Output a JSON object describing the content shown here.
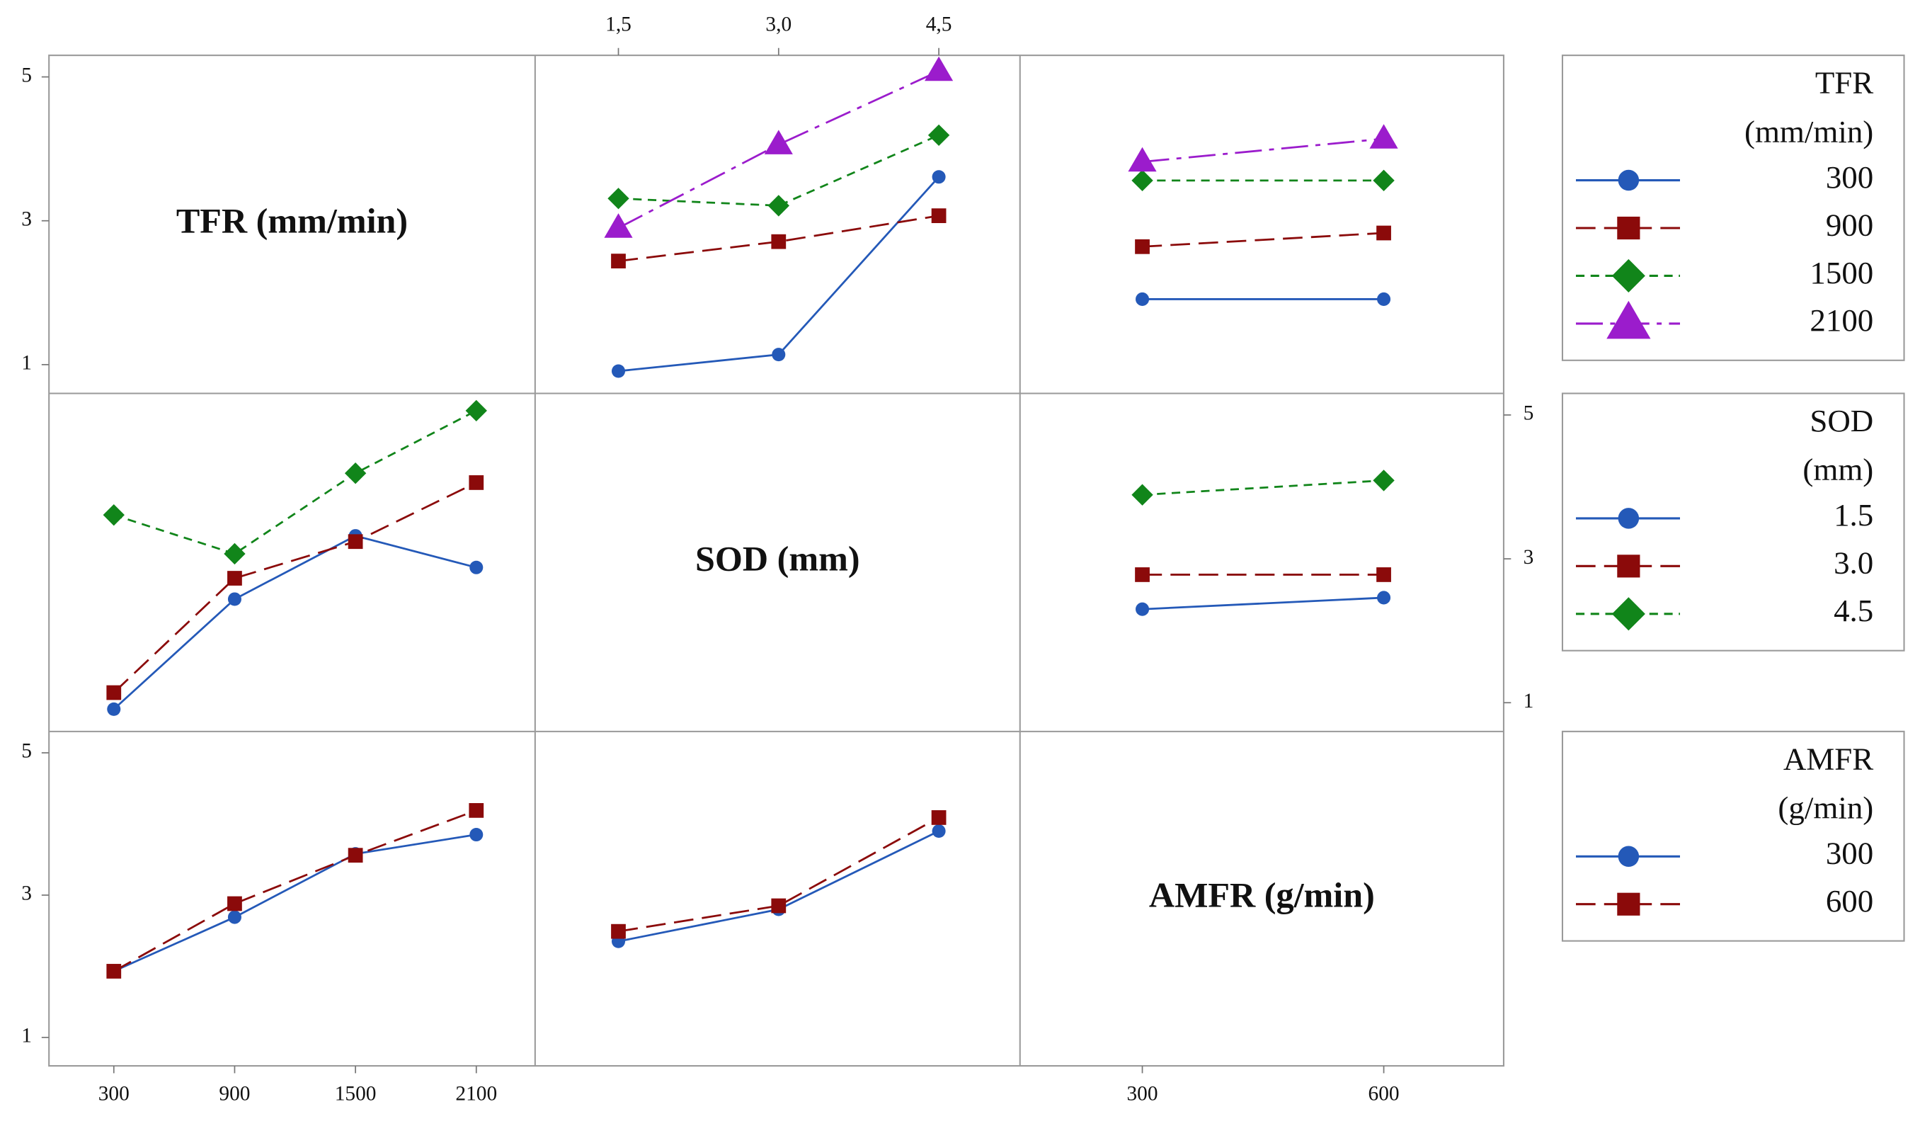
{
  "chart_data": {
    "type": "line",
    "ylim": [
      0.6,
      5.3
    ],
    "yticks": [
      1,
      3,
      5
    ],
    "factors": [
      {
        "label": "TFR (mm/min)",
        "legend_title": [
          "TFR",
          "(mm/min)"
        ],
        "x": [
          300,
          900,
          1500,
          2100
        ],
        "xlim": [
          -22,
          2392
        ],
        "xticks": [
          300,
          900,
          1500,
          2100
        ],
        "levels": [
          {
            "name": "300",
            "color": "#2459b8",
            "marker": "circle",
            "dash": "none"
          },
          {
            "name": "900",
            "color": "#8b0a0a",
            "marker": "square",
            "dash": "16 7"
          },
          {
            "name": "1500",
            "color": "#11851a",
            "marker": "diamond",
            "dash": "7 5"
          },
          {
            "name": "2100",
            "color": "#9b1ccc",
            "marker": "triangle",
            "dash": "22 6 4 6"
          }
        ],
        "panels": [
          null,
          [
            [
              0.91,
              1.14,
              3.61
            ],
            [
              2.44,
              2.71,
              3.07
            ],
            [
              3.31,
              3.21,
              4.19
            ],
            [
              2.9,
              4.06,
              5.08
            ]
          ],
          [
            [
              1.91,
              1.91
            ],
            [
              2.64,
              2.83
            ],
            [
              3.56,
              3.56
            ],
            [
              3.82,
              4.14
            ]
          ]
        ]
      },
      {
        "label": "SOD (mm)",
        "legend_title": [
          "SOD",
          "(mm)"
        ],
        "x": [
          1.5,
          3.0,
          4.5
        ],
        "xlim": [
          0.72,
          5.26
        ],
        "xticks": [
          {
            "value": 1.5,
            "label": "1,5"
          },
          {
            "value": 3.0,
            "label": "3,0"
          },
          {
            "value": 4.5,
            "label": "4,5"
          }
        ],
        "levels": [
          {
            "name": "1.5",
            "color": "#2459b8",
            "marker": "circle",
            "dash": "none"
          },
          {
            "name": "3.0",
            "color": "#8b0a0a",
            "marker": "square",
            "dash": "16 7"
          },
          {
            "name": "4.5",
            "color": "#11851a",
            "marker": "diamond",
            "dash": "7 5"
          }
        ],
        "panels": [
          [
            [
              0.91,
              2.44,
              3.32,
              2.88
            ],
            [
              1.14,
              2.73,
              3.24,
              4.06
            ],
            [
              3.61,
              3.07,
              4.19,
              5.06
            ]
          ],
          null,
          [
            [
              2.3,
              2.46
            ],
            [
              2.78,
              2.78
            ],
            [
              3.89,
              4.09
            ]
          ]
        ]
      },
      {
        "label": "AMFR (g/min)",
        "legend_title": [
          "AMFR",
          "(g/min)"
        ],
        "x": [
          300,
          600
        ],
        "xlim": [
          148,
          749
        ],
        "xticks": [
          300,
          600
        ],
        "levels": [
          {
            "name": "300",
            "color": "#2459b8",
            "marker": "circle",
            "dash": "none"
          },
          {
            "name": "600",
            "color": "#8b0a0a",
            "marker": "square",
            "dash": "16 7"
          }
        ],
        "panels": [
          [
            [
              1.93,
              2.69,
              3.58,
              3.85
            ],
            [
              1.93,
              2.88,
              3.56,
              4.19
            ]
          ],
          [
            [
              2.35,
              2.8,
              3.9
            ],
            [
              2.49,
              2.85,
              4.09
            ]
          ],
          null
        ]
      }
    ]
  }
}
